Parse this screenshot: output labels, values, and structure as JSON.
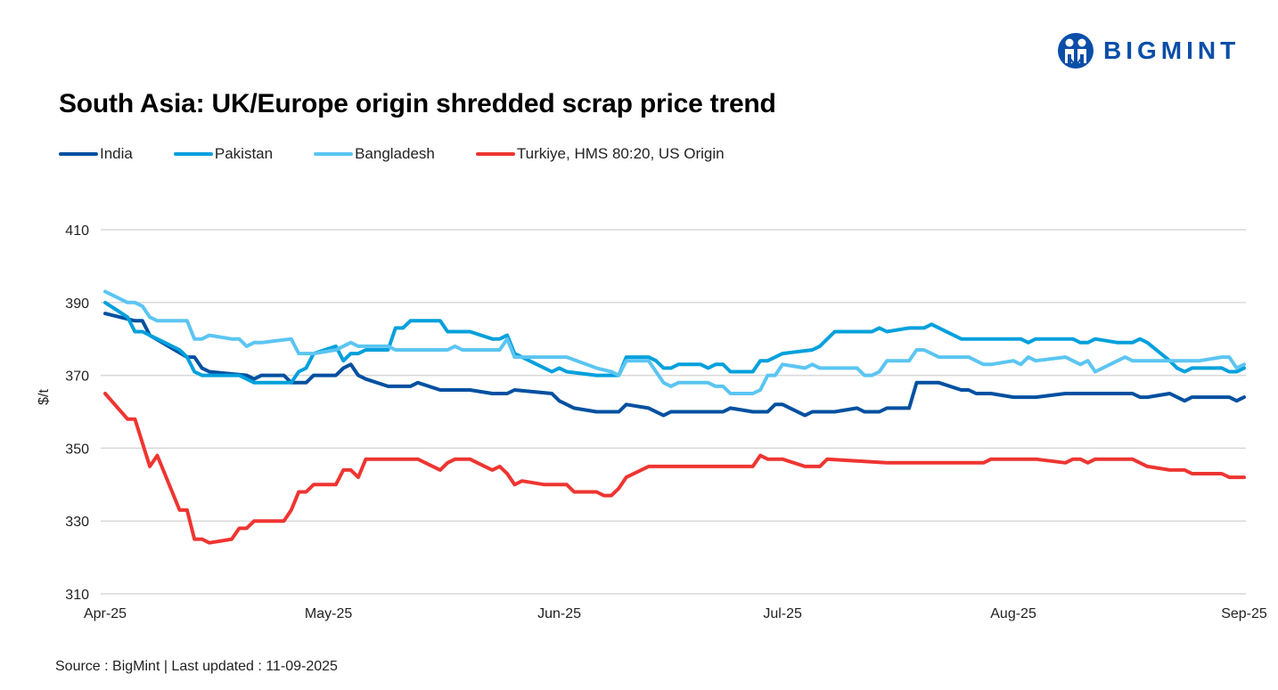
{
  "logo": {
    "text": "BIGMINT",
    "color": "#0a4ea8"
  },
  "source": "Source : BigMint | Last updated : 11-09-2025",
  "chart_data": {
    "type": "line",
    "title": "South Asia: UK/Europe origin shredded scrap price trend",
    "xlabel": "",
    "ylabel": "$/t",
    "ylim": [
      310,
      410
    ],
    "yticks": [
      310,
      330,
      350,
      370,
      390,
      410
    ],
    "xlim": [
      "2025-04-01",
      "2025-09-01"
    ],
    "xticks": [
      {
        "date": "2025-04-01",
        "label": "Apr-25"
      },
      {
        "date": "2025-05-01",
        "label": "May-25"
      },
      {
        "date": "2025-06-01",
        "label": "Jun-25"
      },
      {
        "date": "2025-07-01",
        "label": "Jul-25"
      },
      {
        "date": "2025-08-01",
        "label": "Aug-25"
      },
      {
        "date": "2025-09-01",
        "label": "Sep-25"
      }
    ],
    "grid": "horizontal",
    "legend_position": "top-left",
    "series": [
      {
        "name": "India",
        "color": "#0050A0",
        "points": [
          [
            "04-01",
            387
          ],
          [
            "04-05",
            385
          ],
          [
            "04-06",
            385
          ],
          [
            "04-07",
            381
          ],
          [
            "04-12",
            375
          ],
          [
            "04-13",
            375
          ],
          [
            "04-14",
            372
          ],
          [
            "04-15",
            371
          ],
          [
            "04-20",
            370
          ],
          [
            "04-21",
            369
          ],
          [
            "04-22",
            370
          ],
          [
            "04-25",
            370
          ],
          [
            "04-26",
            368
          ],
          [
            "04-28",
            368
          ],
          [
            "04-29",
            370
          ],
          [
            "05-02",
            370
          ],
          [
            "05-03",
            372
          ],
          [
            "05-04",
            373
          ],
          [
            "05-05",
            370
          ],
          [
            "05-06",
            369
          ],
          [
            "05-09",
            367
          ],
          [
            "05-12",
            367
          ],
          [
            "05-13",
            368
          ],
          [
            "05-16",
            366
          ],
          [
            "05-20",
            366
          ],
          [
            "05-23",
            365
          ],
          [
            "05-25",
            365
          ],
          [
            "05-26",
            366
          ],
          [
            "05-31",
            365
          ],
          [
            "06-01",
            363
          ],
          [
            "06-03",
            361
          ],
          [
            "06-06",
            360
          ],
          [
            "06-09",
            360
          ],
          [
            "06-10",
            362
          ],
          [
            "06-13",
            361
          ],
          [
            "06-15",
            359
          ],
          [
            "06-16",
            360
          ],
          [
            "06-23",
            360
          ],
          [
            "06-24",
            361
          ],
          [
            "06-27",
            360
          ],
          [
            "06-29",
            360
          ],
          [
            "06-30",
            362
          ],
          [
            "07-01",
            362
          ],
          [
            "07-04",
            359
          ],
          [
            "07-05",
            360
          ],
          [
            "07-08",
            360
          ],
          [
            "07-11",
            361
          ],
          [
            "07-12",
            360
          ],
          [
            "07-14",
            360
          ],
          [
            "07-15",
            361
          ],
          [
            "07-18",
            361
          ],
          [
            "07-19",
            368
          ],
          [
            "07-22",
            368
          ],
          [
            "07-25",
            366
          ],
          [
            "07-26",
            366
          ],
          [
            "07-27",
            365
          ],
          [
            "07-29",
            365
          ],
          [
            "08-01",
            364
          ],
          [
            "08-04",
            364
          ],
          [
            "08-08",
            365
          ],
          [
            "08-17",
            365
          ],
          [
            "08-18",
            364
          ],
          [
            "08-19",
            364
          ],
          [
            "08-22",
            365
          ],
          [
            "08-24",
            363
          ],
          [
            "08-25",
            364
          ],
          [
            "08-30",
            364
          ],
          [
            "08-31",
            363
          ],
          [
            "09-01",
            364
          ]
        ]
      },
      {
        "name": "Pakistan",
        "color": "#00A0DC",
        "points": [
          [
            "04-01",
            390
          ],
          [
            "04-04",
            386
          ],
          [
            "04-05",
            382
          ],
          [
            "04-06",
            382
          ],
          [
            "04-11",
            377
          ],
          [
            "04-12",
            375
          ],
          [
            "04-13",
            371
          ],
          [
            "04-14",
            370
          ],
          [
            "04-19",
            370
          ],
          [
            "04-21",
            368
          ],
          [
            "04-26",
            368
          ],
          [
            "04-27",
            371
          ],
          [
            "04-28",
            372
          ],
          [
            "04-29",
            376
          ],
          [
            "05-02",
            378
          ],
          [
            "05-03",
            374
          ],
          [
            "05-04",
            376
          ],
          [
            "05-05",
            376
          ],
          [
            "05-06",
            377
          ],
          [
            "05-09",
            377
          ],
          [
            "05-10",
            383
          ],
          [
            "05-11",
            383
          ],
          [
            "05-12",
            385
          ],
          [
            "05-16",
            385
          ],
          [
            "05-17",
            382
          ],
          [
            "05-20",
            382
          ],
          [
            "05-23",
            380
          ],
          [
            "05-24",
            380
          ],
          [
            "05-25",
            381
          ],
          [
            "05-26",
            376
          ],
          [
            "05-31",
            371
          ],
          [
            "06-01",
            372
          ],
          [
            "06-02",
            371
          ],
          [
            "06-06",
            370
          ],
          [
            "06-09",
            370
          ],
          [
            "06-10",
            375
          ],
          [
            "06-13",
            375
          ],
          [
            "06-14",
            374
          ],
          [
            "06-15",
            372
          ],
          [
            "06-16",
            372
          ],
          [
            "06-17",
            373
          ],
          [
            "06-20",
            373
          ],
          [
            "06-21",
            372
          ],
          [
            "06-22",
            373
          ],
          [
            "06-23",
            373
          ],
          [
            "06-24",
            371
          ],
          [
            "06-27",
            371
          ],
          [
            "06-28",
            374
          ],
          [
            "06-29",
            374
          ],
          [
            "07-01",
            376
          ],
          [
            "07-05",
            377
          ],
          [
            "07-06",
            378
          ],
          [
            "07-08",
            382
          ],
          [
            "07-13",
            382
          ],
          [
            "07-14",
            383
          ],
          [
            "07-15",
            382
          ],
          [
            "07-18",
            383
          ],
          [
            "07-20",
            383
          ],
          [
            "07-21",
            384
          ],
          [
            "07-25",
            380
          ],
          [
            "08-02",
            380
          ],
          [
            "08-03",
            379
          ],
          [
            "08-04",
            380
          ],
          [
            "08-09",
            380
          ],
          [
            "08-10",
            379
          ],
          [
            "08-11",
            379
          ],
          [
            "08-12",
            380
          ],
          [
            "08-15",
            379
          ],
          [
            "08-17",
            379
          ],
          [
            "08-18",
            380
          ],
          [
            "08-19",
            379
          ],
          [
            "08-22",
            374
          ],
          [
            "08-23",
            372
          ],
          [
            "08-24",
            371
          ],
          [
            "08-25",
            372
          ],
          [
            "08-29",
            372
          ],
          [
            "08-30",
            371
          ],
          [
            "08-31",
            371
          ],
          [
            "09-01",
            372
          ]
        ]
      },
      {
        "name": "Bangladesh",
        "color": "#5BC5F2",
        "points": [
          [
            "04-01",
            393
          ],
          [
            "04-04",
            390
          ],
          [
            "04-05",
            390
          ],
          [
            "04-06",
            389
          ],
          [
            "04-07",
            386
          ],
          [
            "04-08",
            385
          ],
          [
            "04-12",
            385
          ],
          [
            "04-13",
            380
          ],
          [
            "04-14",
            380
          ],
          [
            "04-15",
            381
          ],
          [
            "04-18",
            380
          ],
          [
            "04-19",
            380
          ],
          [
            "04-20",
            378
          ],
          [
            "04-21",
            379
          ],
          [
            "04-22",
            379
          ],
          [
            "04-26",
            380
          ],
          [
            "04-27",
            376
          ],
          [
            "04-29",
            376
          ],
          [
            "05-02",
            377
          ],
          [
            "05-04",
            379
          ],
          [
            "05-05",
            378
          ],
          [
            "05-09",
            378
          ],
          [
            "05-10",
            377
          ],
          [
            "05-17",
            377
          ],
          [
            "05-18",
            378
          ],
          [
            "05-19",
            377
          ],
          [
            "05-24",
            377
          ],
          [
            "05-25",
            380
          ],
          [
            "05-26",
            375
          ],
          [
            "06-02",
            375
          ],
          [
            "06-06",
            372
          ],
          [
            "06-08",
            371
          ],
          [
            "06-09",
            370
          ],
          [
            "06-10",
            374
          ],
          [
            "06-13",
            374
          ],
          [
            "06-15",
            368
          ],
          [
            "06-16",
            367
          ],
          [
            "06-17",
            368
          ],
          [
            "06-21",
            368
          ],
          [
            "06-22",
            367
          ],
          [
            "06-23",
            367
          ],
          [
            "06-24",
            365
          ],
          [
            "06-27",
            365
          ],
          [
            "06-28",
            366
          ],
          [
            "06-29",
            370
          ],
          [
            "06-30",
            370
          ],
          [
            "07-01",
            373
          ],
          [
            "07-04",
            372
          ],
          [
            "07-05",
            373
          ],
          [
            "07-06",
            372
          ],
          [
            "07-11",
            372
          ],
          [
            "07-12",
            370
          ],
          [
            "07-13",
            370
          ],
          [
            "07-14",
            371
          ],
          [
            "07-15",
            374
          ],
          [
            "07-18",
            374
          ],
          [
            "07-19",
            377
          ],
          [
            "07-20",
            377
          ],
          [
            "07-22",
            375
          ],
          [
            "07-26",
            375
          ],
          [
            "07-28",
            373
          ],
          [
            "07-29",
            373
          ],
          [
            "08-01",
            374
          ],
          [
            "08-02",
            373
          ],
          [
            "08-03",
            375
          ],
          [
            "08-04",
            374
          ],
          [
            "08-08",
            375
          ],
          [
            "08-10",
            373
          ],
          [
            "08-11",
            374
          ],
          [
            "08-12",
            371
          ],
          [
            "08-16",
            375
          ],
          [
            "08-17",
            374
          ],
          [
            "08-26",
            374
          ],
          [
            "08-29",
            375
          ],
          [
            "08-30",
            375
          ],
          [
            "08-31",
            372
          ],
          [
            "09-01",
            373
          ]
        ]
      },
      {
        "name": "Turkiye, HMS 80:20, US Origin",
        "color": "#EE3531",
        "points": [
          [
            "04-01",
            365
          ],
          [
            "04-04",
            358
          ],
          [
            "04-05",
            358
          ],
          [
            "04-07",
            345
          ],
          [
            "04-08",
            348
          ],
          [
            "04-11",
            333
          ],
          [
            "04-12",
            333
          ],
          [
            "04-13",
            325
          ],
          [
            "04-14",
            325
          ],
          [
            "04-15",
            324
          ],
          [
            "04-18",
            325
          ],
          [
            "04-19",
            328
          ],
          [
            "04-20",
            328
          ],
          [
            "04-21",
            330
          ],
          [
            "04-25",
            330
          ],
          [
            "04-26",
            333
          ],
          [
            "04-27",
            338
          ],
          [
            "04-28",
            338
          ],
          [
            "04-29",
            340
          ],
          [
            "05-02",
            340
          ],
          [
            "05-03",
            344
          ],
          [
            "05-04",
            344
          ],
          [
            "05-05",
            342
          ],
          [
            "05-06",
            347
          ],
          [
            "05-13",
            347
          ],
          [
            "05-16",
            344
          ],
          [
            "05-17",
            346
          ],
          [
            "05-18",
            347
          ],
          [
            "05-20",
            347
          ],
          [
            "05-22",
            345
          ],
          [
            "05-23",
            344
          ],
          [
            "05-24",
            345
          ],
          [
            "05-25",
            343
          ],
          [
            "05-26",
            340
          ],
          [
            "05-27",
            341
          ],
          [
            "05-30",
            340
          ],
          [
            "06-02",
            340
          ],
          [
            "06-03",
            338
          ],
          [
            "06-06",
            338
          ],
          [
            "06-07",
            337
          ],
          [
            "06-08",
            337
          ],
          [
            "06-09",
            339
          ],
          [
            "06-10",
            342
          ],
          [
            "06-13",
            345
          ],
          [
            "06-27",
            345
          ],
          [
            "06-28",
            348
          ],
          [
            "06-29",
            347
          ],
          [
            "07-01",
            347
          ],
          [
            "07-04",
            345
          ],
          [
            "07-06",
            345
          ],
          [
            "07-07",
            347
          ],
          [
            "07-15",
            346
          ],
          [
            "07-28",
            346
          ],
          [
            "07-29",
            347
          ],
          [
            "08-04",
            347
          ],
          [
            "08-08",
            346
          ],
          [
            "08-09",
            347
          ],
          [
            "08-10",
            347
          ],
          [
            "08-11",
            346
          ],
          [
            "08-12",
            347
          ],
          [
            "08-17",
            347
          ],
          [
            "08-19",
            345
          ],
          [
            "08-22",
            344
          ],
          [
            "08-24",
            344
          ],
          [
            "08-25",
            343
          ],
          [
            "08-29",
            343
          ],
          [
            "08-30",
            342
          ],
          [
            "09-01",
            342
          ]
        ]
      }
    ]
  }
}
